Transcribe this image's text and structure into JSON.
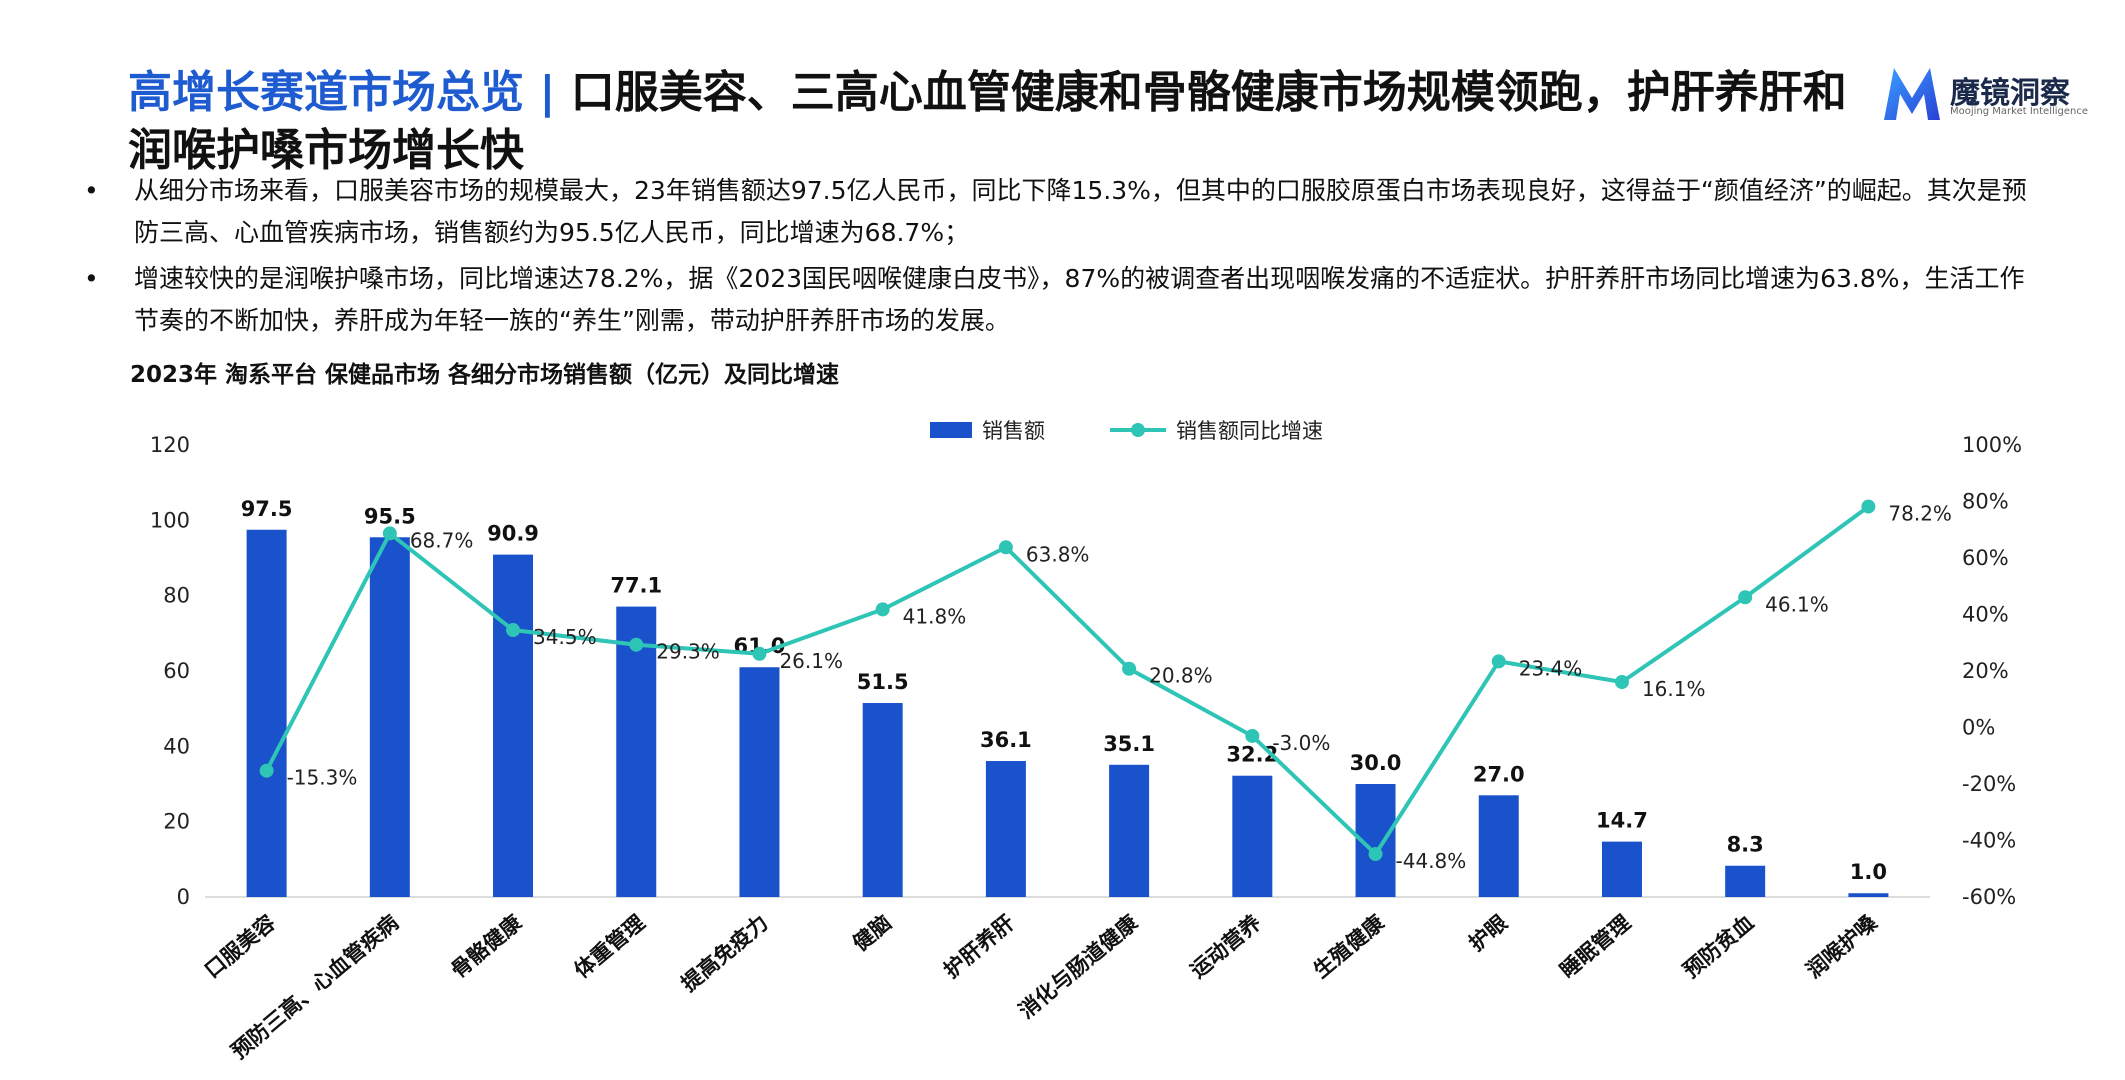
{
  "header": {
    "title_highlight": "高增长赛道市场总览",
    "title_separator": "|",
    "title_main_line1": "口服美容、三高心血管健康和骨骼健康市场规模领跑，护肝养肝和",
    "title_main_line2": "润喉护嗓市场增长快",
    "logo_name": "魔镜洞察",
    "logo_sub": "Moojing Market Intelligence"
  },
  "bullets": [
    "从细分市场来看，口服美容市场的规模最大，23年销售额达97.5亿人民币，同比下降15.3%，但其中的口服胶原蛋白市场表现良好，这得益于“颜值经济”的崛起。其次是预防三高、心血管疾病市场，销售额约为95.5亿人民币，同比增速为68.7%；",
    "增速较快的是润喉护嗓市场，同比增速达78.2%，据《2023国民咽喉健康白皮书》，87%的被调查者出现咽喉发痛的不适症状。护肝养肝市场同比增速为63.8%，生活工作节奏的不断加快，养肝成为年轻一族的“养生”刚需，带动护肝养肝市场的发展。"
  ],
  "colors": {
    "bar": "#1a52cc",
    "line": "#2ec4b6",
    "title_accent": "#1f5bd0"
  },
  "chart_data": {
    "type": "bar",
    "title": "2023年 淘系平台  保健品市场 各细分市场销售额（亿元）及同比增速",
    "categories": [
      "口服美容",
      "预防三高、心血管疾病",
      "骨骼健康",
      "体重管理",
      "提高免疫力",
      "健脑",
      "护肝养肝",
      "消化与肠道健康",
      "运动营养",
      "生殖健康",
      "护眼",
      "睡眠管理",
      "预防贫血",
      "润喉护嗓"
    ],
    "series": [
      {
        "name": "销售额",
        "type": "bar",
        "axis": "left",
        "values": [
          97.5,
          95.5,
          90.9,
          77.1,
          61.0,
          51.5,
          36.1,
          35.1,
          32.2,
          30.0,
          27.0,
          14.7,
          8.3,
          1.0
        ],
        "labels": [
          "97.5",
          "95.5",
          "90.9",
          "77.1",
          "61.0",
          "51.5",
          "36.1",
          "35.1",
          "32.2",
          "30.0",
          "27.0",
          "14.7",
          "8.3",
          "1.0"
        ]
      },
      {
        "name": "销售额同比增速",
        "type": "line",
        "axis": "right",
        "values": [
          -15.3,
          68.7,
          34.5,
          29.3,
          26.1,
          41.8,
          63.8,
          20.8,
          -3.0,
          -44.8,
          23.4,
          16.1,
          46.1,
          78.2
        ],
        "labels": [
          "-15.3%",
          "68.7%",
          "34.5%",
          "29.3%",
          "26.1%",
          "41.8%",
          "63.8%",
          "20.8%",
          "-3.0%",
          "-44.8%",
          "23.4%",
          "16.1%",
          "46.1%",
          "78.2%"
        ]
      }
    ],
    "y_left": {
      "min": 0,
      "max": 120,
      "ticks": [
        "0",
        "20",
        "40",
        "60",
        "80",
        "100",
        "120"
      ]
    },
    "y_right": {
      "min": -60,
      "max": 100,
      "ticks": [
        "-60%",
        "-40%",
        "-20%",
        "0%",
        "20%",
        "40%",
        "60%",
        "80%",
        "100%"
      ]
    },
    "legend_position": "top-center",
    "grid": false
  }
}
